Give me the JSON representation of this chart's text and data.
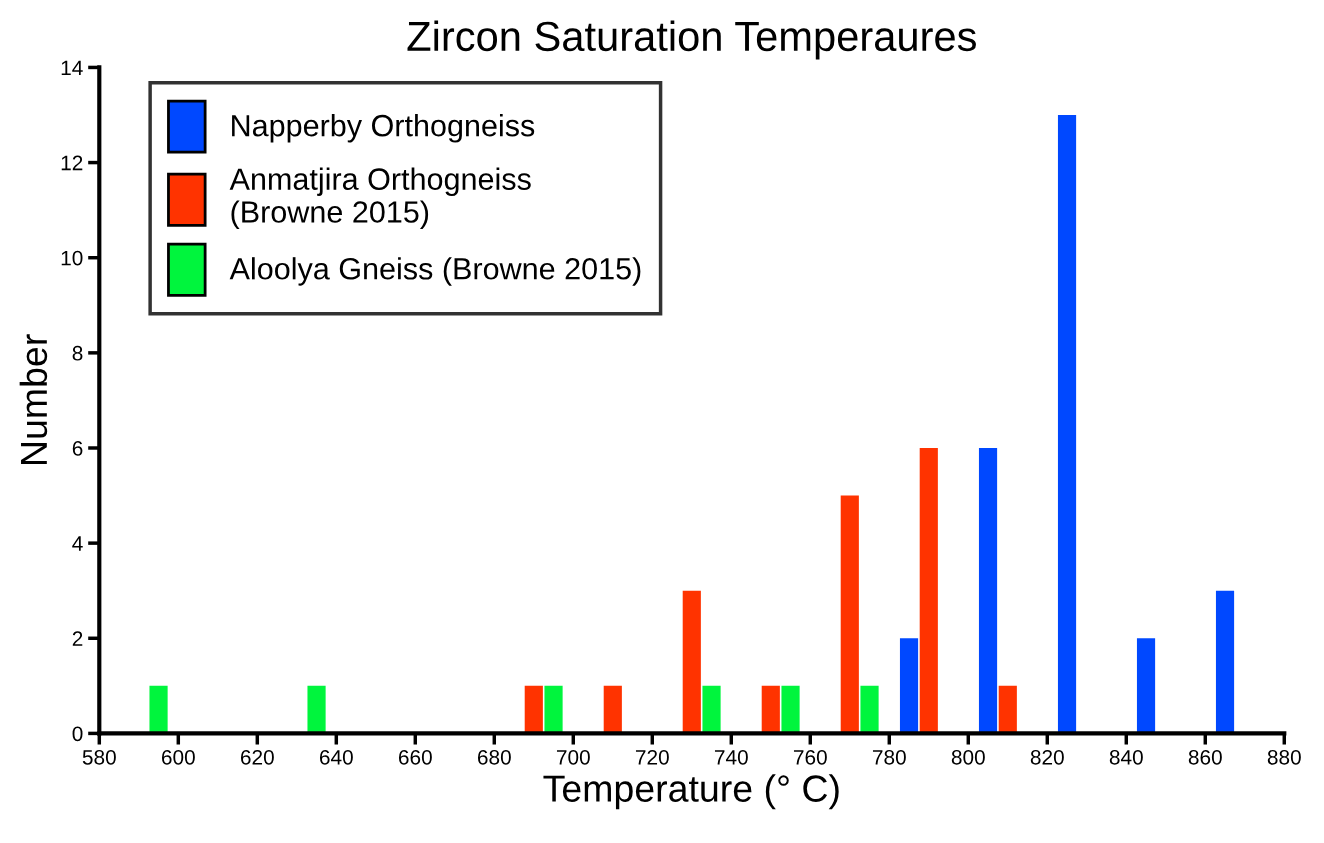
{
  "chart_data": {
    "type": "bar",
    "title": "Zircon Saturation Temperaures",
    "xlabel": "Temperature (° C)",
    "ylabel": "Number",
    "xlim": [
      580,
      880
    ],
    "xticks": [
      580,
      600,
      620,
      640,
      660,
      680,
      700,
      720,
      740,
      760,
      780,
      800,
      820,
      840,
      860,
      880
    ],
    "ylim": [
      0,
      14
    ],
    "yticks": [
      0,
      2,
      4,
      6,
      8,
      10,
      12,
      14
    ],
    "series": [
      {
        "name": "Napperby Orthogneiss",
        "color": "#0048ff",
        "x": [
          785,
          805,
          825,
          845,
          865
        ],
        "values": [
          2,
          6,
          13,
          2,
          3
        ]
      },
      {
        "name": "Anmatjira Orthogneiss\n(Browne 2015)",
        "color": "#ff3300",
        "x": [
          690,
          710,
          730,
          750,
          770,
          790,
          810
        ],
        "values": [
          1,
          1,
          3,
          1,
          5,
          6,
          1
        ]
      },
      {
        "name": "Aloolya Gneiss (Browne 2015)",
        "color": "#00f53d",
        "x": [
          595,
          635,
          695,
          735,
          755,
          775
        ],
        "values": [
          1,
          1,
          1,
          1,
          1,
          1
        ]
      }
    ],
    "grid": false,
    "legend": "top left"
  }
}
